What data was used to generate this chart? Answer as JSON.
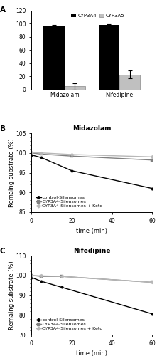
{
  "panel_A": {
    "categories": [
      "Midazolam",
      "Nifedipine"
    ],
    "CYP3A4_values": [
      96,
      98
    ],
    "CYP3A5_values": [
      5,
      23
    ],
    "CYP3A4_errors": [
      2,
      1.5
    ],
    "CYP3A5_errors": [
      5,
      6
    ],
    "CYP3A4_color": "#000000",
    "CYP3A5_color": "#c0c0c0",
    "ylim": [
      0,
      120
    ],
    "yticks": [
      0,
      20,
      40,
      60,
      80,
      100,
      120
    ],
    "label_A": "A"
  },
  "panel_B": {
    "title": "Midazolam",
    "xlabel": "time (min)",
    "ylabel": "Remaing substrate (%)",
    "ylim": [
      85,
      105
    ],
    "yticks": [
      85,
      90,
      95,
      100,
      105
    ],
    "xlim": [
      0,
      60
    ],
    "xticks": [
      0,
      20,
      40,
      60
    ],
    "time": [
      0,
      5,
      20,
      60
    ],
    "control": [
      99.5,
      98.8,
      95.5,
      91.0
    ],
    "CYP3A4": [
      100.0,
      99.7,
      99.2,
      98.2
    ],
    "CYP3A4_keto": [
      100.1,
      100.0,
      99.6,
      99.0
    ],
    "label_B": "B"
  },
  "panel_C": {
    "title": "Nifedipine",
    "xlabel": "time (min)",
    "ylabel": "Remaing substrate (%)",
    "ylim": [
      70,
      110
    ],
    "yticks": [
      70,
      80,
      90,
      100,
      110
    ],
    "xlim": [
      0,
      60
    ],
    "xticks": [
      0,
      20,
      40,
      60
    ],
    "time": [
      0,
      5,
      15,
      60
    ],
    "control": [
      99.0,
      97.0,
      94.0,
      80.5
    ],
    "CYP3A4": [
      100.0,
      99.5,
      99.5,
      96.5
    ],
    "CYP3A4_keto": [
      100.0,
      99.8,
      99.5,
      96.5
    ],
    "label_C": "C"
  },
  "legend_labels": [
    "control-Silensomes",
    "CYP3A4-Silensomes",
    "CYP3A4-Silensomes + Keto"
  ],
  "line_colors": [
    "#000000",
    "#808080",
    "#b8b8b8"
  ],
  "background_color": "#ffffff",
  "font_size": 6.5
}
